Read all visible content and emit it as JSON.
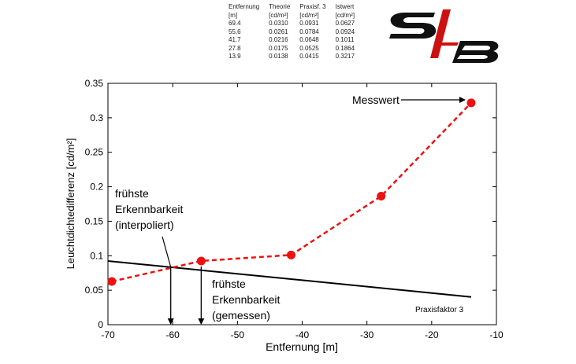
{
  "table": {
    "headers": [
      "Entfernung",
      "Theorie",
      "Praxisf. 3",
      "Istwert"
    ],
    "units": [
      "[m]",
      "[cd/m²]",
      "[cd/m²]",
      "[cd/m²]"
    ],
    "rows": [
      [
        "69.4",
        "0.0310",
        "0.0931",
        "0.0627"
      ],
      [
        "55.6",
        "0.0261",
        "0.0784",
        "0.0924"
      ],
      [
        "41.7",
        "0.0216",
        "0.0648",
        "0.1011"
      ],
      [
        "27.8",
        "0.0175",
        "0.0525",
        "0.1864"
      ],
      [
        "13.9",
        "0.0138",
        "0.0415",
        "0.3217"
      ]
    ]
  },
  "logo": {
    "text": "S/B",
    "colors": {
      "dark": "#111111",
      "accent": "#cc1111"
    }
  },
  "chart_data": {
    "type": "line",
    "xlabel": "Entfernung [m]",
    "ylabel": "Leuchtdichtedifferenz [cd/m²]",
    "xlim": [
      -70,
      -10
    ],
    "ylim": [
      0,
      0.35
    ],
    "xticks": [
      -70,
      -60,
      -50,
      -40,
      -30,
      -20,
      -10
    ],
    "yticks": [
      0,
      0.05,
      0.1,
      0.15,
      0.2,
      0.25,
      0.3,
      0.35
    ],
    "series": [
      {
        "name": "Messwert",
        "color": "#ee1111",
        "style": "dashed-markers",
        "x": [
          -69.4,
          -55.6,
          -41.7,
          -27.8,
          -13.9
        ],
        "y": [
          0.0627,
          0.0924,
          0.1011,
          0.1864,
          0.3217
        ]
      },
      {
        "name": "Praxisfaktor 3",
        "color": "#000000",
        "style": "solid",
        "x": [
          -69.4,
          -55.6,
          -41.7,
          -27.8,
          -13.9
        ],
        "y": [
          0.0931,
          0.0784,
          0.0648,
          0.0525,
          0.0415
        ]
      }
    ],
    "annotations": [
      {
        "id": "messwert",
        "lines": [
          "Messwert"
        ],
        "target": [
          -13.9,
          0.3217
        ]
      },
      {
        "id": "interpoliert",
        "lines": [
          "frühste",
          "Erkennbarkeit",
          "(interpoliert)"
        ],
        "target": [
          -60.3,
          0.0835
        ]
      },
      {
        "id": "gemessen",
        "lines": [
          "frühste",
          "Erkennbarkeit",
          "(gemessen)"
        ],
        "target": [
          -55.6,
          0
        ]
      },
      {
        "id": "praxisfaktor",
        "lines": [
          "Praxisfaktor 3"
        ]
      }
    ]
  }
}
